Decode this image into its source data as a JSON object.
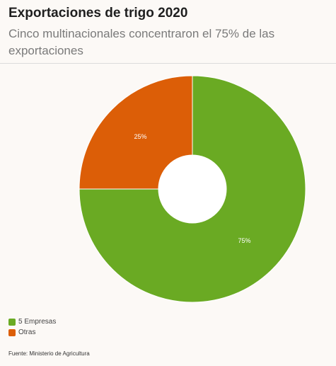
{
  "header": {
    "title": "Exportaciones de trigo 2020",
    "subtitle": "Cinco multinacionales concentraron el 75% de las exportaciones"
  },
  "chart_data": {
    "type": "pie",
    "style": "donut",
    "categories": [
      "5 Empresas",
      "Otras"
    ],
    "values": [
      75,
      25
    ],
    "value_labels": [
      "75%",
      "25%"
    ],
    "colors": [
      "#6aaa23",
      "#dc5e07"
    ],
    "legend_position": "bottom-left"
  },
  "legend": {
    "items": [
      {
        "label": "5 Empresas",
        "color": "#6aaa23"
      },
      {
        "label": "Otras",
        "color": "#dc5e07"
      }
    ]
  },
  "source": "Fuente: Ministerio de Agricultura"
}
